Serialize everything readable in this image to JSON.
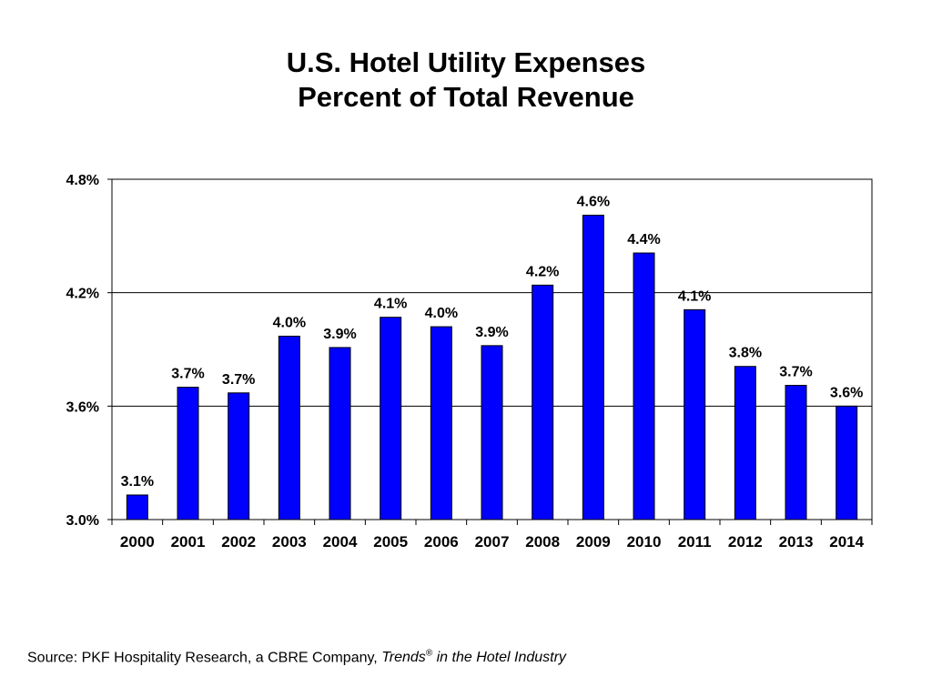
{
  "chart_data": {
    "type": "bar",
    "title": "U.S. Hotel Utility Expenses",
    "subtitle": "Percent of Total Revenue",
    "xlabel": "",
    "ylabel": "",
    "categories": [
      "2000",
      "2001",
      "2002",
      "2003",
      "2004",
      "2005",
      "2006",
      "2007",
      "2008",
      "2009",
      "2010",
      "2011",
      "2012",
      "2013",
      "2014"
    ],
    "values": [
      3.13,
      3.7,
      3.67,
      3.97,
      3.91,
      4.07,
      4.02,
      3.92,
      4.24,
      4.61,
      4.41,
      4.11,
      3.81,
      3.71,
      3.6
    ],
    "data_labels": [
      "3.1%",
      "3.7%",
      "3.7%",
      "4.0%",
      "3.9%",
      "4.1%",
      "4.0%",
      "3.9%",
      "4.2%",
      "4.6%",
      "4.4%",
      "4.1%",
      "3.8%",
      "3.7%",
      "3.6%"
    ],
    "ylim": [
      3.0,
      4.8
    ],
    "yticks": [
      3.0,
      3.6,
      4.2,
      4.8
    ],
    "ytick_labels": [
      "3.0%",
      "3.6%",
      "4.2%",
      "4.8%"
    ],
    "grid": true,
    "legend": "none",
    "bar_color": "#0000FF"
  },
  "source": {
    "prefix": "Source: PKF Hospitality Research, a CBRE Company, ",
    "publication": "Trends",
    "registered": "®",
    "suffix": " in the Hotel Industry"
  }
}
